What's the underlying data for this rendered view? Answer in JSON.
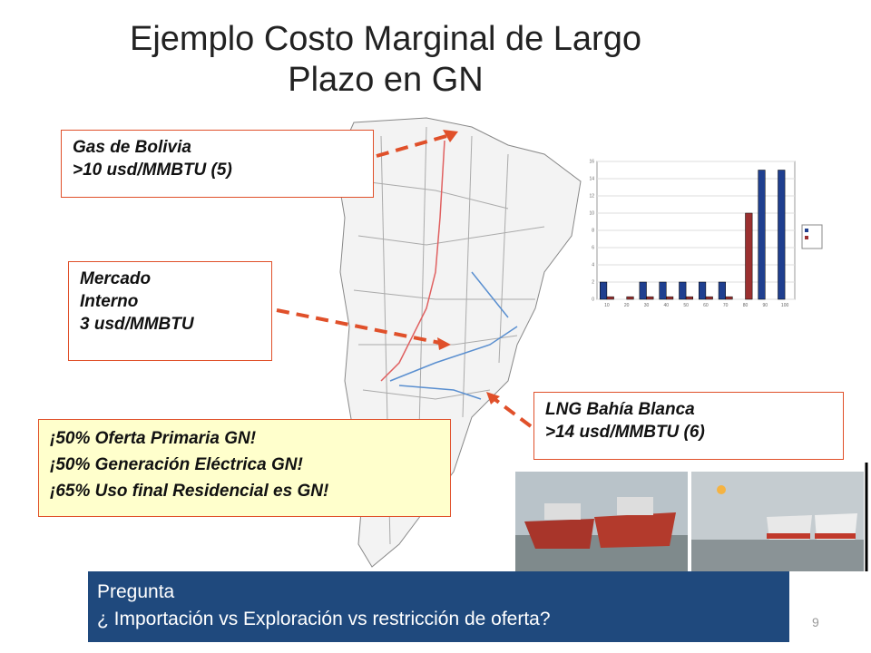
{
  "title_lines": [
    "Ejemplo Costo Marginal de Largo",
    "Plazo en GN"
  ],
  "callouts": [
    {
      "lines": [
        "Gas de Bolivia",
        ">10 usd/MMBTU (5)"
      ]
    },
    {
      "lines": [
        "Mercado",
        "Interno",
        "3 usd/MMBTU"
      ]
    },
    {
      "lines": [
        "¡50% Oferta  Primaria GN!",
        "¡50% Generación Eléctrica GN!",
        "¡65% Uso final Residencial es GN!"
      ]
    },
    {
      "lines": [
        "LNG Bahía Blanca",
        ">14 usd/MMBTU (6)"
      ]
    }
  ],
  "question": {
    "heading": "Pregunta",
    "text": "¿  Importación vs Exploración vs restricción de oferta?"
  },
  "page_number": 9,
  "inset_chart": {
    "type": "bar",
    "categories": [
      "10",
      "20",
      "30",
      "40",
      "50",
      "60",
      "70",
      "80",
      "90",
      "100"
    ],
    "series": [
      {
        "color": "#1f3f8f",
        "values": [
          2,
          null,
          2,
          2,
          2,
          2,
          2,
          null,
          15,
          15
        ]
      },
      {
        "color": "#9b3030",
        "values": [
          0.3,
          0.3,
          0.3,
          0.3,
          0.3,
          0.3,
          0.3,
          10,
          null,
          null
        ]
      }
    ],
    "ylim": [
      0,
      16
    ],
    "yticks": [
      0,
      2,
      4,
      6,
      8,
      10,
      12,
      14,
      16
    ]
  }
}
